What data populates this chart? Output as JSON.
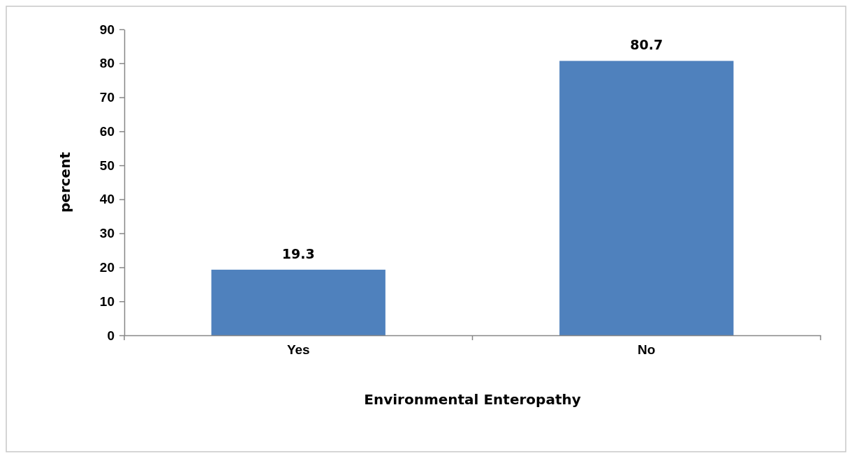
{
  "chart_data": {
    "type": "bar",
    "xlabel": "Environmental Enteropathy",
    "ylabel": "percent",
    "categories": [
      "Yes",
      "No"
    ],
    "values": [
      19.3,
      80.7
    ],
    "color": "#4f81bd",
    "ylim": [
      0,
      90
    ],
    "yticks": [
      0,
      10,
      20,
      30,
      40,
      50,
      60,
      70,
      80,
      90
    ],
    "data_labels": true,
    "grid": false
  }
}
